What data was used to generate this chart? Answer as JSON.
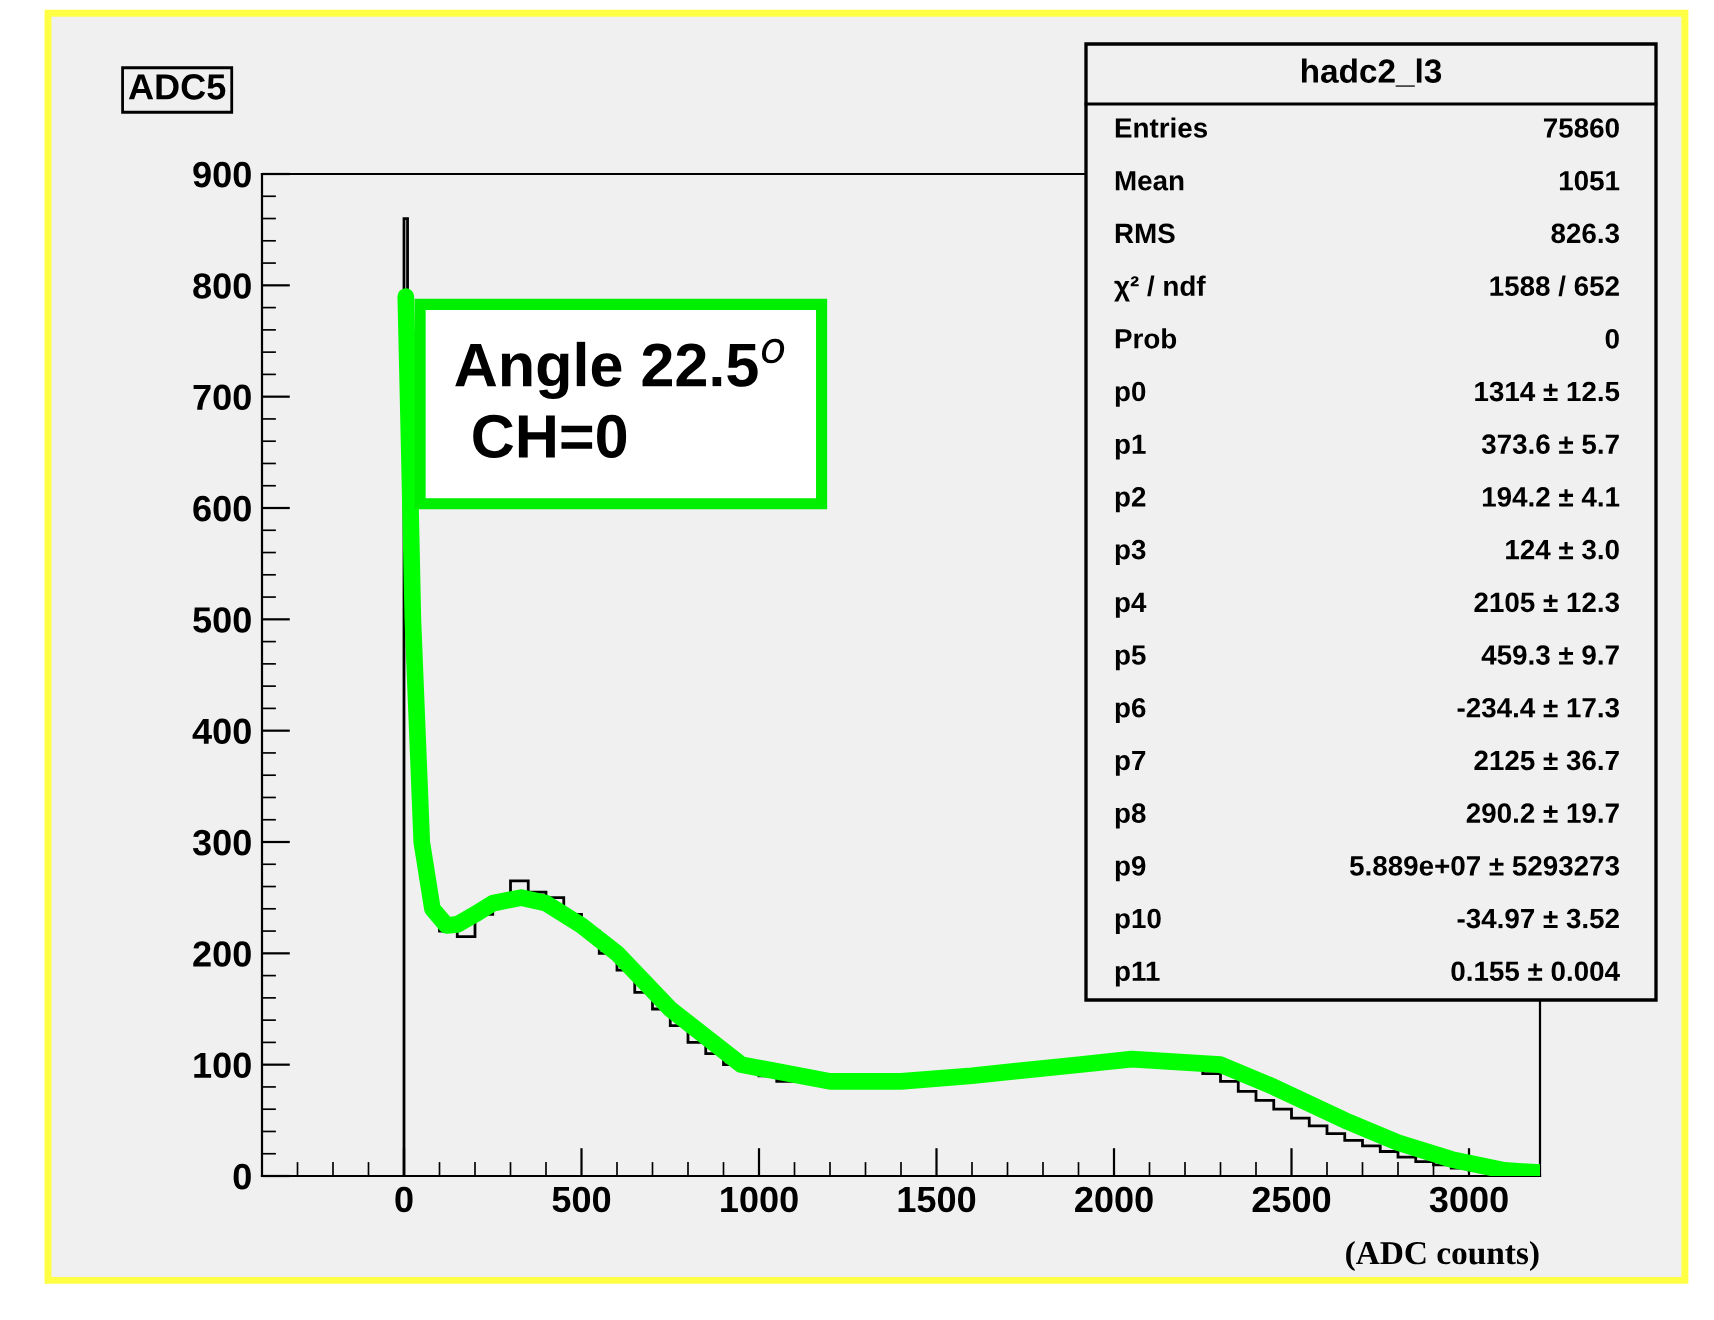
{
  "chart_data": {
    "type": "histogram",
    "title": "ADC5",
    "xlabel": "(ADC counts)",
    "xlim": [
      -400,
      3200
    ],
    "xticks": [
      0,
      500,
      1000,
      1500,
      2000,
      2500,
      3000
    ],
    "ylim": [
      0,
      900
    ],
    "yticks": [
      0,
      100,
      200,
      300,
      400,
      500,
      600,
      700,
      800,
      900
    ],
    "series": [
      {
        "color": "#000000",
        "bins": [
          0,
          10,
          20,
          40,
          60,
          80,
          100,
          150,
          200,
          250,
          300,
          350,
          400,
          450,
          500,
          550,
          600,
          650,
          700,
          750,
          800,
          850,
          900,
          950,
          1000,
          1050,
          1100,
          1150,
          1200,
          1250,
          1300,
          1350,
          1400,
          1450,
          1500,
          1550,
          1600,
          1650,
          1700,
          1750,
          1800,
          1850,
          1900,
          1950,
          2000,
          2050,
          2100,
          2150,
          2200,
          2250,
          2300,
          2350,
          2400,
          2450,
          2500,
          2550,
          2600,
          2650,
          2700,
          2750,
          2800,
          2850,
          2900,
          2950,
          3000,
          3050,
          3100,
          3150,
          3200
        ],
        "values": [
          860,
          600,
          420,
          330,
          270,
          240,
          220,
          215,
          235,
          250,
          265,
          255,
          250,
          235,
          220,
          200,
          185,
          165,
          150,
          135,
          120,
          110,
          100,
          95,
          90,
          85,
          85,
          85,
          85,
          85,
          85,
          85,
          85,
          85,
          88,
          90,
          92,
          95,
          97,
          98,
          100,
          102,
          103,
          105,
          106,
          105,
          104,
          102,
          98,
          92,
          85,
          76,
          68,
          60,
          52,
          45,
          38,
          32,
          27,
          22,
          17,
          13,
          10,
          7,
          5,
          3,
          2,
          1
        ]
      },
      {
        "type": "line",
        "color": "#00ff00",
        "x": [
          5,
          15,
          25,
          50,
          80,
          120,
          150,
          200,
          250,
          330,
          400,
          500,
          600,
          750,
          950,
          1200,
          1400,
          1600,
          1900,
          2050,
          2300,
          2450,
          2650,
          2800,
          2950,
          3100,
          3200
        ],
        "values": [
          790,
          650,
          500,
          300,
          240,
          225,
          226,
          235,
          245,
          250,
          245,
          225,
          200,
          150,
          100,
          85,
          85,
          90,
          100,
          105,
          100,
          80,
          50,
          30,
          15,
          5,
          3
        ]
      }
    ],
    "annotations": [
      "Angle 22.5$^{o}$\n CH=0",
      "hadc2_l3",
      "Entries\t75860",
      "Mean\t1051",
      "RMS\t826.3",
      "χ² / ndf\t1588 / 652",
      "Prob\t0",
      "p0\t1314 ± 12.5",
      "p1\t373.6 ± 5.7",
      "p2\t194.2 ± 4.1",
      "p3\t124 ± 3.0",
      "p4\t2105 ± 12.3",
      "p5\t459.3 ± 9.7",
      "p6\t-234.4 ± 17.3",
      "p7\t2125 ± 36.7",
      "p8\t290.2 ± 19.7",
      "p9\t5.889e+07 ± 5293273",
      "p10\t-34.97 ± 3.52",
      "p11\t0.155 ± 0.004"
    ]
  }
}
